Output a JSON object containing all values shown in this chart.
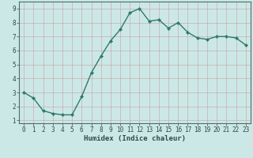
{
  "x": [
    0,
    1,
    2,
    3,
    4,
    5,
    6,
    7,
    8,
    9,
    10,
    11,
    12,
    13,
    14,
    15,
    16,
    17,
    18,
    19,
    20,
    21,
    22,
    23
  ],
  "y": [
    3.0,
    2.6,
    1.7,
    1.5,
    1.4,
    1.4,
    2.7,
    4.4,
    5.6,
    6.7,
    7.5,
    8.7,
    9.0,
    8.1,
    8.2,
    7.6,
    8.0,
    7.3,
    6.9,
    6.8,
    7.0,
    7.0,
    6.9,
    6.4
  ],
  "xlabel": "Humidex (Indice chaleur)",
  "line_color": "#2d7a6e",
  "marker": "D",
  "marker_size": 2.2,
  "bg_color": "#cce8e6",
  "grid_color": "#c8a0a0",
  "axis_color": "#2d4a48",
  "spine_color": "#4a6e6a",
  "xlim": [
    -0.5,
    23.5
  ],
  "ylim": [
    0.8,
    9.5
  ],
  "yticks": [
    1,
    2,
    3,
    4,
    5,
    6,
    7,
    8,
    9
  ],
  "xticks": [
    0,
    1,
    2,
    3,
    4,
    5,
    6,
    7,
    8,
    9,
    10,
    11,
    12,
    13,
    14,
    15,
    16,
    17,
    18,
    19,
    20,
    21,
    22,
    23
  ],
  "tick_fontsize": 5.5,
  "xlabel_fontsize": 6.5,
  "line_width": 1.0
}
